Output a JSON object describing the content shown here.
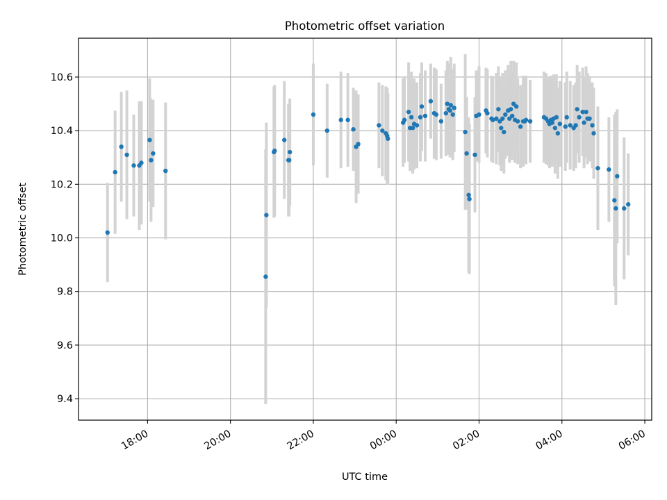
{
  "chart_data": {
    "type": "scatter",
    "title": "Photometric offset variation",
    "xlabel": "UTC time",
    "ylabel": "Photometric offset",
    "x_is_time": true,
    "xlim": [
      "16:20",
      "06:10"
    ],
    "ylim": [
      9.32,
      10.745
    ],
    "x_ticks": [
      "18:00",
      "20:00",
      "22:00",
      "00:00",
      "02:00",
      "04:00",
      "06:00"
    ],
    "y_ticks": [
      9.4,
      9.6,
      9.8,
      10.0,
      10.2,
      10.4,
      10.6
    ],
    "y_tick_labels": [
      "9.4",
      "9.6",
      "9.8",
      "10.0",
      "10.2",
      "10.4",
      "10.6"
    ],
    "grid": true,
    "colors": {
      "points": "#1f77b4",
      "error_bars": "#d3d3d3",
      "grid": "#b0b0b0"
    },
    "series": [
      {
        "x": [
          "17:02",
          "17:13",
          "17:22",
          "17:30",
          "17:40",
          "17:48",
          "17:51",
          "18:03",
          "18:05",
          "18:08",
          "18:26",
          "20:51",
          "20:52",
          "21:03",
          "21:04",
          "21:18",
          "21:24",
          "21:25",
          "21:26",
          "22:00",
          "22:20",
          "22:40",
          "22:50",
          "22:58",
          "23:02",
          "23:05",
          "23:35",
          "23:40",
          "23:45",
          "23:47",
          "23:48",
          "00:10",
          "00:12",
          "00:18",
          "00:20",
          "00:22",
          "00:24",
          "00:26",
          "00:30",
          "00:35",
          "00:37",
          "00:42",
          "00:50",
          "00:55",
          "00:58",
          "01:05",
          "01:12",
          "01:14",
          "01:16",
          "01:18",
          "01:19",
          "01:22",
          "01:24",
          "01:40",
          "01:42",
          "01:45",
          "01:46",
          "01:54",
          "01:56",
          "02:00",
          "02:10",
          "02:12",
          "02:18",
          "02:20",
          "02:25",
          "02:28",
          "02:30",
          "02:32",
          "02:34",
          "02:36",
          "02:38",
          "02:42",
          "02:44",
          "02:46",
          "02:48",
          "02:50",
          "02:52",
          "02:54",
          "02:56",
          "03:00",
          "03:04",
          "03:06",
          "03:08",
          "03:14",
          "03:34",
          "03:37",
          "03:40",
          "03:42",
          "03:44",
          "03:46",
          "03:48",
          "03:50",
          "03:52",
          "03:54",
          "03:57",
          "04:05",
          "04:07",
          "04:12",
          "04:17",
          "04:20",
          "04:22",
          "04:25",
          "04:30",
          "04:32",
          "04:35",
          "04:37",
          "04:40",
          "04:44",
          "04:46",
          "04:52",
          "05:08",
          "05:16",
          "05:18",
          "05:20",
          "05:30",
          "05:36"
        ],
        "y": [
          10.02,
          10.245,
          10.34,
          10.31,
          10.27,
          10.27,
          10.28,
          10.365,
          10.29,
          10.315,
          10.25,
          9.855,
          10.085,
          10.32,
          10.325,
          10.365,
          10.29,
          10.29,
          10.32,
          10.46,
          10.4,
          10.44,
          10.44,
          10.405,
          10.34,
          10.35,
          10.42,
          10.4,
          10.39,
          10.38,
          10.37,
          10.43,
          10.44,
          10.47,
          10.41,
          10.45,
          10.41,
          10.425,
          10.42,
          10.45,
          10.49,
          10.455,
          10.51,
          10.465,
          10.46,
          10.435,
          10.465,
          10.5,
          10.48,
          10.475,
          10.495,
          10.46,
          10.485,
          10.395,
          10.315,
          10.16,
          10.145,
          10.31,
          10.455,
          10.46,
          10.475,
          10.465,
          10.445,
          10.44,
          10.445,
          10.48,
          10.435,
          10.41,
          10.445,
          10.395,
          10.46,
          10.475,
          10.445,
          10.48,
          10.455,
          10.5,
          10.44,
          10.49,
          10.435,
          10.415,
          10.435,
          10.435,
          10.44,
          10.435,
          10.45,
          10.445,
          10.435,
          10.425,
          10.44,
          10.43,
          10.445,
          10.41,
          10.45,
          10.39,
          10.425,
          10.415,
          10.45,
          10.42,
          10.41,
          10.42,
          10.48,
          10.45,
          10.47,
          10.43,
          10.47,
          10.445,
          10.445,
          10.42,
          10.39,
          10.26,
          10.255,
          10.14,
          10.11,
          10.23,
          10.11,
          10.125
        ],
        "y_error": [
          0.185,
          0.23,
          0.205,
          0.24,
          0.19,
          0.24,
          0.23,
          0.23,
          0.23,
          0.2,
          0.255,
          0.475,
          0.345,
          0.245,
          0.245,
          0.22,
          0.21,
          0.21,
          0.2,
          0.19,
          0.175,
          0.18,
          0.175,
          0.155,
          0.21,
          0.185,
          0.16,
          0.17,
          0.175,
          0.18,
          0.17,
          0.165,
          0.16,
          0.185,
          0.16,
          0.17,
          0.17,
          0.17,
          0.16,
          0.165,
          0.165,
          0.17,
          0.14,
          0.17,
          0.17,
          0.14,
          0.16,
          0.16,
          0.17,
          0.175,
          0.18,
          0.17,
          0.165,
          0.29,
          0.21,
          0.29,
          0.28,
          0.215,
          0.17,
          0.18,
          0.16,
          0.165,
          0.16,
          0.16,
          0.17,
          0.16,
          0.165,
          0.16,
          0.17,
          0.155,
          0.165,
          0.17,
          0.165,
          0.18,
          0.165,
          0.16,
          0.16,
          0.165,
          0.16,
          0.155,
          0.17,
          0.16,
          0.165,
          0.155,
          0.17,
          0.17,
          0.165,
          0.165,
          0.165,
          0.165,
          0.165,
          0.17,
          0.16,
          0.17,
          0.16,
          0.165,
          0.17,
          0.165,
          0.16,
          0.16,
          0.165,
          0.17,
          0.165,
          0.17,
          0.17,
          0.17,
          0.16,
          0.16,
          0.17,
          0.23,
          0.195,
          0.32,
          0.36,
          0.25,
          0.265,
          0.19
        ]
      }
    ]
  }
}
